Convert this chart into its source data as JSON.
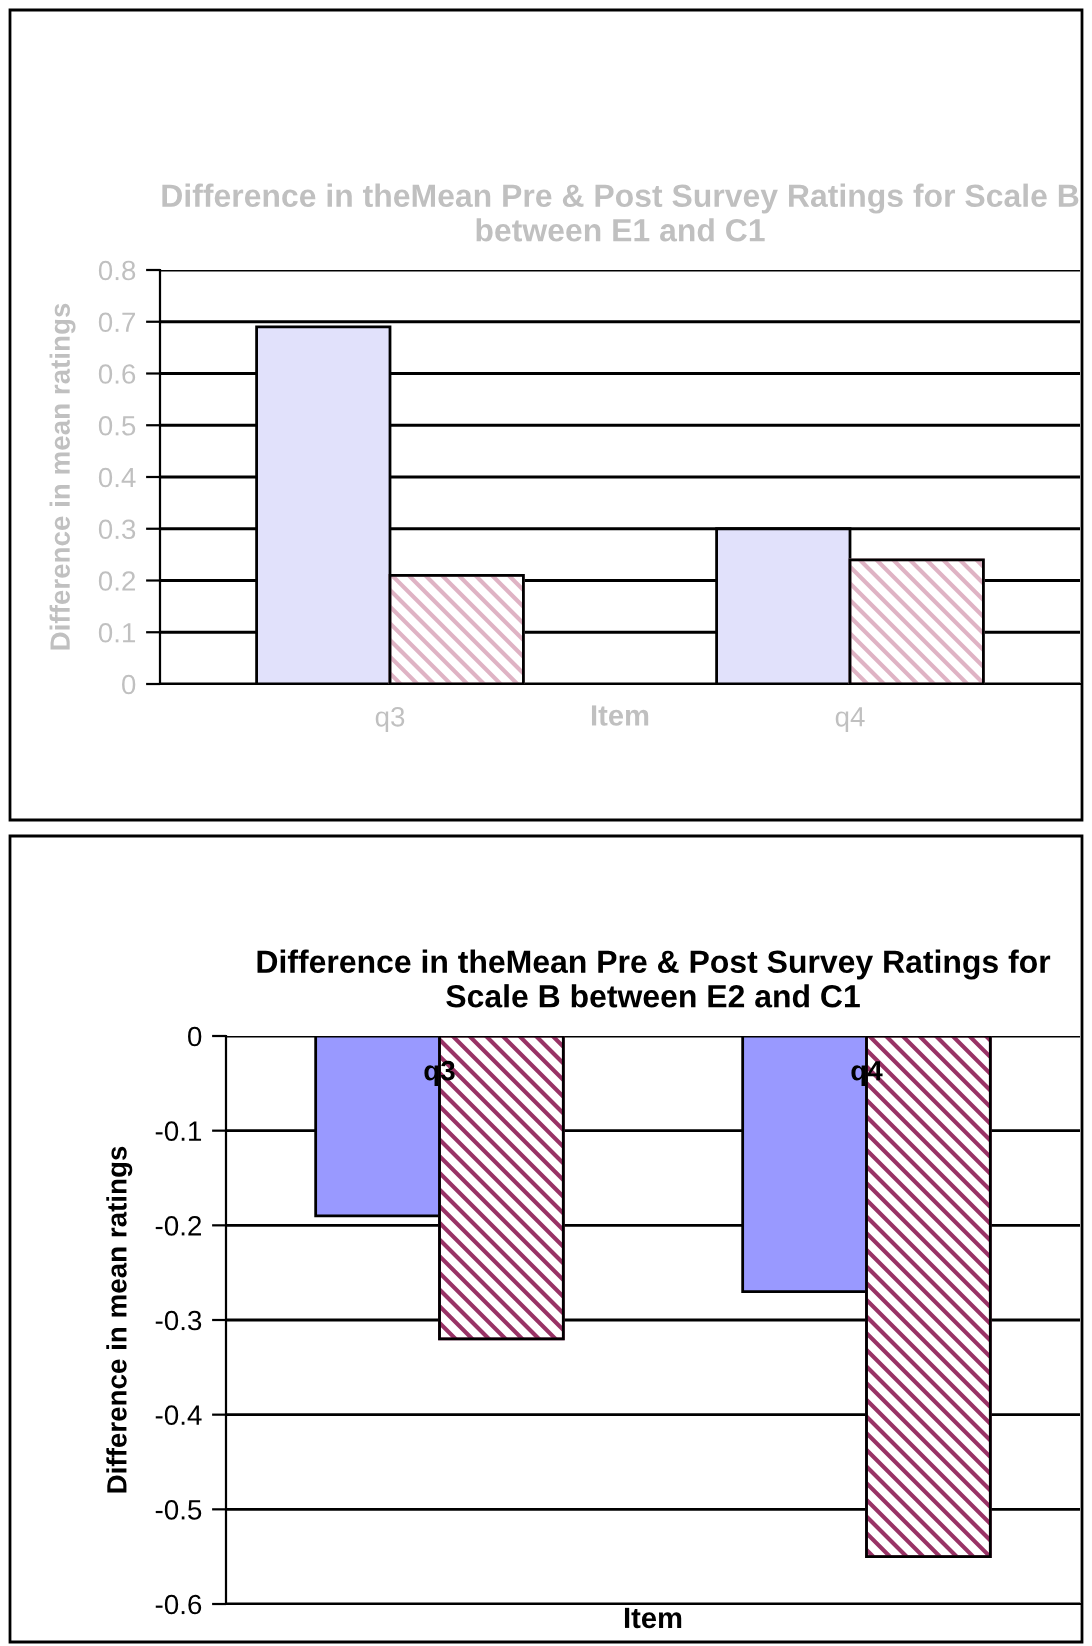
{
  "chart_data": [
    {
      "type": "bar",
      "title": "Difference in theMean Pre & Post Survey Ratings for Scale B between E1 and C1",
      "xlabel": "Item",
      "ylabel": "Difference in mean ratings",
      "categories": [
        "q3",
        "q4"
      ],
      "series": [
        {
          "color": "#e1e1fb",
          "values": [
            0.69,
            0.3
          ]
        },
        {
          "color": "#dfb3c4",
          "values": [
            0.21,
            0.24
          ]
        }
      ],
      "ylim": [
        0,
        0.8
      ],
      "yticks": [
        0,
        0.1,
        0.2,
        0.3,
        0.4,
        0.5,
        0.6,
        0.7,
        0.8
      ],
      "grid": "y",
      "legend": false
    },
    {
      "type": "bar",
      "title": "Difference in theMean Pre & Post Survey Ratings for Scale B between E2 and C1",
      "xlabel": "Item",
      "ylabel": "Difference in mean ratings",
      "categories": [
        "q3",
        "q4"
      ],
      "series": [
        {
          "color": "#9999ff",
          "values": [
            -0.19,
            -0.27
          ]
        },
        {
          "color": "#993366",
          "values": [
            -0.32,
            -0.55
          ]
        }
      ],
      "ylim": [
        -0.6,
        0
      ],
      "yticks": [
        -0.6,
        -0.5,
        -0.4,
        -0.3,
        -0.2,
        -0.1,
        0
      ],
      "grid": "y",
      "legend": false
    }
  ]
}
